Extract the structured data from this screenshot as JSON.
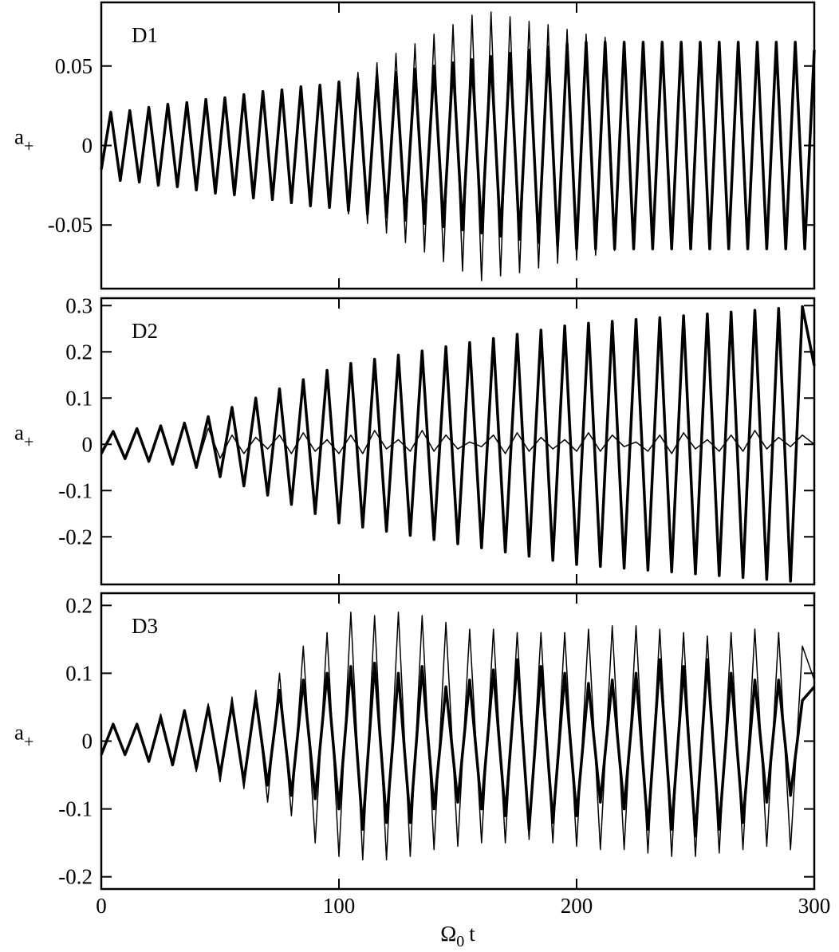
{
  "chart_data": [
    {
      "type": "line",
      "panel_label": "D1",
      "ylabel": "a",
      "ylabel_sub": "+",
      "xlim": [
        0,
        300
      ],
      "xticks": [
        0,
        100,
        200,
        300
      ],
      "show_xtick_labels": false,
      "ylim": [
        -0.09,
        0.09
      ],
      "yticks": [
        -0.05,
        0,
        0.05
      ],
      "x": [
        0,
        4,
        8,
        12,
        16,
        20,
        24,
        28,
        32,
        36,
        40,
        44,
        48,
        52,
        56,
        60,
        64,
        68,
        72,
        76,
        80,
        84,
        88,
        92,
        96,
        100,
        104,
        108,
        112,
        116,
        120,
        124,
        128,
        132,
        136,
        140,
        144,
        148,
        152,
        156,
        160,
        164,
        168,
        172,
        176,
        180,
        184,
        188,
        192,
        196,
        200,
        204,
        208,
        212,
        216,
        220,
        224,
        228,
        232,
        236,
        240,
        244,
        248,
        252,
        256,
        260,
        264,
        268,
        272,
        276,
        280,
        284,
        288,
        292,
        296,
        300
      ],
      "series": [
        {
          "color": "#000000",
          "line_width": 1.5,
          "values": [
            -0.015,
            0.021,
            -0.022,
            0.022,
            -0.023,
            0.024,
            -0.025,
            0.026,
            -0.026,
            0.027,
            -0.028,
            0.029,
            -0.03,
            0.03,
            -0.031,
            0.032,
            -0.033,
            0.034,
            -0.034,
            0.035,
            -0.036,
            0.037,
            -0.038,
            0.038,
            -0.039,
            0.04,
            -0.043,
            0.046,
            -0.049,
            0.052,
            -0.055,
            0.058,
            -0.061,
            0.064,
            -0.067,
            0.07,
            -0.073,
            0.076,
            -0.079,
            0.082,
            -0.085,
            0.084,
            -0.082,
            0.081,
            -0.08,
            0.078,
            -0.077,
            0.076,
            -0.074,
            0.073,
            -0.072,
            0.07,
            -0.069,
            0.068,
            -0.066,
            0.065,
            -0.065,
            0.065,
            -0.065,
            0.065,
            -0.065,
            0.065,
            -0.065,
            0.065,
            -0.065,
            0.065,
            -0.065,
            0.065,
            -0.065,
            0.065,
            -0.065,
            0.065,
            -0.065,
            0.065,
            -0.065,
            0.06
          ]
        },
        {
          "color": "#000000",
          "line_width": 3.5,
          "values": [
            -0.015,
            0.021,
            -0.022,
            0.022,
            -0.023,
            0.024,
            -0.025,
            0.026,
            -0.026,
            0.027,
            -0.028,
            0.029,
            -0.03,
            0.03,
            -0.031,
            0.032,
            -0.033,
            0.034,
            -0.034,
            0.035,
            -0.036,
            0.037,
            -0.038,
            0.038,
            -0.039,
            0.04,
            -0.041,
            0.042,
            -0.043,
            0.044,
            -0.045,
            0.046,
            -0.047,
            0.048,
            -0.049,
            0.05,
            -0.051,
            0.052,
            -0.053,
            0.054,
            -0.055,
            0.056,
            -0.057,
            0.058,
            -0.059,
            0.06,
            -0.061,
            0.062,
            -0.063,
            0.064,
            -0.065,
            0.065,
            -0.065,
            0.065,
            -0.065,
            0.065,
            -0.065,
            0.065,
            -0.065,
            0.065,
            -0.065,
            0.065,
            -0.065,
            0.065,
            -0.065,
            0.065,
            -0.065,
            0.065,
            -0.065,
            0.065,
            -0.065,
            0.065,
            -0.065,
            0.065,
            -0.065,
            0.06
          ]
        }
      ]
    },
    {
      "type": "line",
      "panel_label": "D2",
      "ylabel": "a",
      "ylabel_sub": "+",
      "xlim": [
        0,
        300
      ],
      "xticks": [
        0,
        100,
        200,
        300
      ],
      "show_xtick_labels": false,
      "ylim": [
        -0.303,
        0.316
      ],
      "yticks": [
        -0.2,
        -0.1,
        0,
        0.1,
        0.2,
        0.3
      ],
      "x": [
        0,
        5,
        10,
        15,
        20,
        25,
        30,
        35,
        40,
        45,
        50,
        55,
        60,
        65,
        70,
        75,
        80,
        85,
        90,
        95,
        100,
        105,
        110,
        115,
        120,
        125,
        130,
        135,
        140,
        145,
        150,
        155,
        160,
        165,
        170,
        175,
        180,
        185,
        190,
        195,
        200,
        205,
        210,
        215,
        220,
        225,
        230,
        235,
        240,
        245,
        250,
        255,
        260,
        265,
        270,
        275,
        280,
        285,
        290,
        295,
        300
      ],
      "series": [
        {
          "color": "#000000",
          "line_width": 1.5,
          "values": [
            -0.02,
            0.028,
            -0.031,
            0.034,
            -0.037,
            0.04,
            -0.043,
            0.046,
            -0.05,
            0.035,
            -0.03,
            0.02,
            -0.02,
            0.015,
            -0.01,
            0.02,
            -0.02,
            0.025,
            -0.015,
            0.01,
            -0.02,
            0.02,
            -0.02,
            0.03,
            -0.01,
            0.01,
            -0.015,
            0.03,
            -0.015,
            0.02,
            -0.01,
            0.005,
            -0.005,
            0.02,
            -0.02,
            0.025,
            -0.015,
            0.015,
            -0.01,
            0.01,
            -0.015,
            0.025,
            -0.015,
            0.02,
            -0.005,
            0.005,
            -0.015,
            0.02,
            -0.02,
            0.025,
            -0.01,
            0.01,
            -0.015,
            0.02,
            -0.015,
            0.03,
            -0.01,
            0.015,
            -0.005,
            0.02,
            0.0
          ]
        },
        {
          "color": "#000000",
          "line_width": 3.5,
          "values": [
            -0.02,
            0.028,
            -0.031,
            0.034,
            -0.037,
            0.04,
            -0.043,
            0.046,
            -0.05,
            0.06,
            -0.07,
            0.08,
            -0.09,
            0.1,
            -0.11,
            0.12,
            -0.13,
            0.14,
            -0.15,
            0.16,
            -0.17,
            0.175,
            -0.179,
            0.184,
            -0.188,
            0.193,
            -0.197,
            0.202,
            -0.206,
            0.211,
            -0.215,
            0.22,
            -0.224,
            0.229,
            -0.233,
            0.238,
            -0.242,
            0.247,
            -0.251,
            0.256,
            -0.26,
            0.262,
            -0.264,
            0.266,
            -0.268,
            0.27,
            -0.272,
            0.274,
            -0.276,
            0.278,
            -0.28,
            0.282,
            -0.284,
            0.286,
            -0.288,
            0.29,
            -0.292,
            0.294,
            -0.296,
            0.298,
            0.17
          ]
        }
      ]
    },
    {
      "type": "line",
      "panel_label": "D3",
      "ylabel": "a",
      "ylabel_sub": "+",
      "xlabel": "Ω",
      "xlabel_sub": "0",
      "xlabel_tail": "t",
      "xlim": [
        0,
        300
      ],
      "xticks": [
        0,
        100,
        200,
        300
      ],
      "show_xtick_labels": true,
      "ylim": [
        -0.218,
        0.218
      ],
      "yticks": [
        -0.2,
        -0.1,
        0,
        0.1,
        0.2
      ],
      "x": [
        0,
        5,
        10,
        15,
        20,
        25,
        30,
        35,
        40,
        45,
        50,
        55,
        60,
        65,
        70,
        75,
        80,
        85,
        90,
        95,
        100,
        105,
        110,
        115,
        120,
        125,
        130,
        135,
        140,
        145,
        150,
        155,
        160,
        165,
        170,
        175,
        180,
        185,
        190,
        195,
        200,
        205,
        210,
        215,
        220,
        225,
        230,
        235,
        240,
        245,
        250,
        255,
        260,
        265,
        270,
        275,
        280,
        285,
        290,
        295,
        300
      ],
      "series": [
        {
          "color": "#000000",
          "line_width": 1.5,
          "values": [
            -0.02,
            0.025,
            -0.02,
            0.025,
            -0.03,
            0.04,
            -0.035,
            0.045,
            -0.045,
            0.055,
            -0.06,
            0.065,
            -0.07,
            0.075,
            -0.09,
            0.1,
            -0.11,
            0.14,
            -0.15,
            0.16,
            -0.17,
            0.19,
            -0.175,
            0.185,
            -0.175,
            0.19,
            -0.17,
            0.185,
            -0.16,
            0.175,
            -0.155,
            0.165,
            -0.15,
            0.165,
            -0.15,
            0.16,
            -0.145,
            0.16,
            -0.15,
            0.16,
            -0.155,
            0.165,
            -0.16,
            0.17,
            -0.16,
            0.17,
            -0.165,
            0.165,
            -0.17,
            0.16,
            -0.17,
            0.155,
            -0.165,
            0.16,
            -0.16,
            0.165,
            -0.155,
            0.16,
            -0.16,
            0.14,
            0.09
          ]
        },
        {
          "color": "#000000",
          "line_width": 3.5,
          "values": [
            -0.02,
            0.025,
            -0.02,
            0.025,
            -0.03,
            0.035,
            -0.035,
            0.045,
            -0.04,
            0.05,
            -0.05,
            0.055,
            -0.06,
            0.065,
            -0.065,
            0.075,
            -0.08,
            0.09,
            -0.085,
            0.1,
            -0.1,
            0.11,
            -0.13,
            0.115,
            -0.12,
            0.1,
            -0.12,
            0.11,
            -0.1,
            0.08,
            -0.09,
            0.09,
            -0.1,
            0.105,
            -0.11,
            0.12,
            -0.13,
            0.11,
            -0.12,
            0.1,
            -0.11,
            0.085,
            -0.09,
            0.09,
            -0.1,
            0.1,
            -0.13,
            0.12,
            -0.13,
            0.11,
            -0.14,
            0.12,
            -0.13,
            0.1,
            -0.12,
            0.09,
            -0.09,
            0.09,
            -0.08,
            0.06,
            0.08
          ]
        }
      ]
    }
  ]
}
